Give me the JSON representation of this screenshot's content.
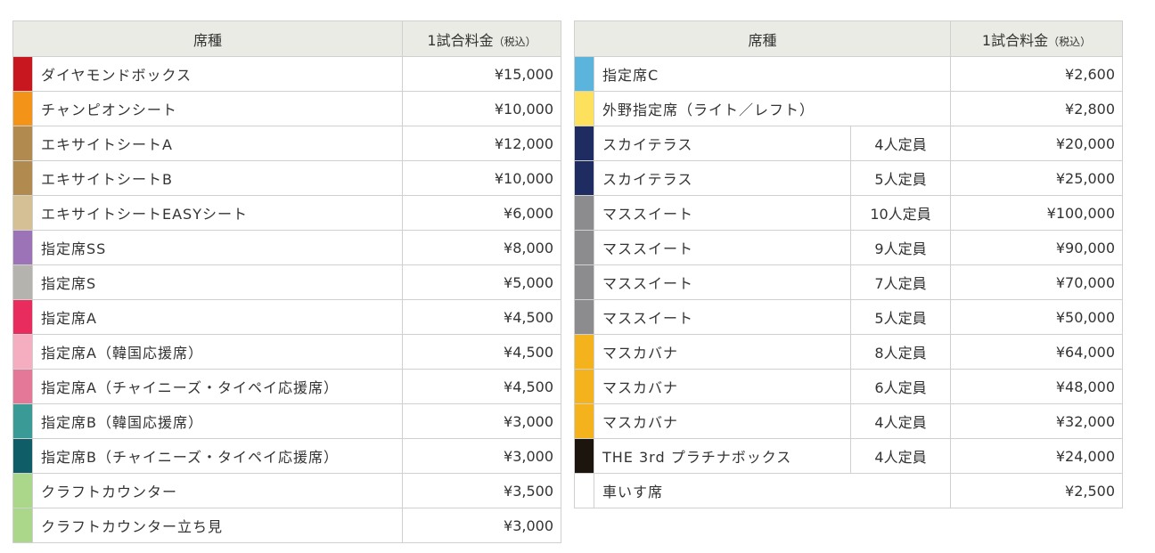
{
  "header": {
    "seat_label": "席種",
    "price_label": "1試合料金",
    "tax_label": "（税込）"
  },
  "left_rows": [
    {
      "name": "ダイヤモンドボックス",
      "price": "¥15,000",
      "color": "#c8171e"
    },
    {
      "name": "チャンピオンシート",
      "price": "¥10,000",
      "color": "#f39419"
    },
    {
      "name": "エキサイトシートA",
      "price": "¥12,000",
      "color": "#b08a4f"
    },
    {
      "name": "エキサイトシートB",
      "price": "¥10,000",
      "color": "#b08a4f"
    },
    {
      "name": "エキサイトシートEASYシート",
      "price": "¥6,000",
      "color": "#d4c094"
    },
    {
      "name": "指定席SS",
      "price": "¥8,000",
      "color": "#9b73b6"
    },
    {
      "name": "指定席S",
      "price": "¥5,000",
      "color": "#b5b3ad"
    },
    {
      "name": "指定席A",
      "price": "¥4,500",
      "color": "#e82c5e"
    },
    {
      "name": "指定席A（韓国応援席）",
      "price": "¥4,500",
      "color": "#f4aec0"
    },
    {
      "name": "指定席A（チャイニーズ・タイペイ応援席）",
      "price": "¥4,500",
      "color": "#e37899"
    },
    {
      "name": "指定席B（韓国応援席）",
      "price": "¥3,000",
      "color": "#3a9a96"
    },
    {
      "name": "指定席B（チャイニーズ・タイペイ応援席）",
      "price": "¥3,000",
      "color": "#0f5d66"
    },
    {
      "name": "クラフトカウンター",
      "price": "¥3,500",
      "color": "#aad789"
    },
    {
      "name": "クラフトカウンター立ち見",
      "price": "¥3,000",
      "color": "#aad789"
    }
  ],
  "right_rows": [
    {
      "name": "指定席C",
      "capacity": "",
      "price": "¥2,600",
      "color": "#5ab4dc"
    },
    {
      "name": "外野指定席（ライト／レフト）",
      "capacity": "",
      "price": "¥2,800",
      "color": "#fde15c"
    },
    {
      "name": "スカイテラス",
      "capacity": "4人定員",
      "price": "¥20,000",
      "color": "#1f2c61"
    },
    {
      "name": "スカイテラス",
      "capacity": "5人定員",
      "price": "¥25,000",
      "color": "#1f2c61"
    },
    {
      "name": "マススイート",
      "capacity": "10人定員",
      "price": "¥100,000",
      "color": "#8c8c8f"
    },
    {
      "name": "マススイート",
      "capacity": "9人定員",
      "price": "¥90,000",
      "color": "#8c8c8f"
    },
    {
      "name": "マススイート",
      "capacity": "7人定員",
      "price": "¥70,000",
      "color": "#8c8c8f"
    },
    {
      "name": "マススイート",
      "capacity": "5人定員",
      "price": "¥50,000",
      "color": "#8c8c8f"
    },
    {
      "name": "マスカバナ",
      "capacity": "8人定員",
      "price": "¥64,000",
      "color": "#f4b21d"
    },
    {
      "name": "マスカバナ",
      "capacity": "6人定員",
      "price": "¥48,000",
      "color": "#f4b21d"
    },
    {
      "name": "マスカバナ",
      "capacity": "4人定員",
      "price": "¥32,000",
      "color": "#f4b21d"
    },
    {
      "name": "THE 3rd プラチナボックス",
      "capacity": "4人定員",
      "price": "¥24,000",
      "color": "#1c150d"
    },
    {
      "name": "車いす席",
      "capacity": "",
      "price": "¥2,500",
      "color": "#ffffff"
    }
  ]
}
